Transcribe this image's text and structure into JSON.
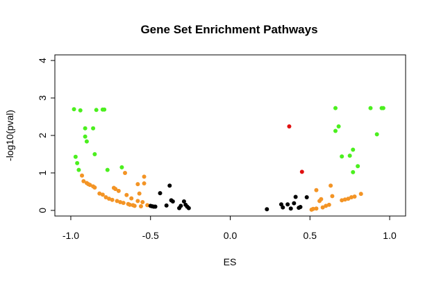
{
  "chart_data": {
    "type": "scatter",
    "title": "Gene Set Enrichment Pathways",
    "xlabel": "ES",
    "ylabel": "-log10(pval)",
    "xlim": [
      -1.1,
      1.1
    ],
    "ylim": [
      -0.15,
      4.15
    ],
    "xticks": [
      -1.0,
      -0.5,
      0.0,
      0.5,
      1.0
    ],
    "xtick_labels": [
      "-1.0",
      "-0.5",
      "0.0",
      "0.5",
      "1.0"
    ],
    "yticks": [
      0,
      1,
      2,
      3,
      4
    ],
    "ytick_labels": [
      "0",
      "1",
      "2",
      "3",
      "4"
    ],
    "grid": false,
    "colors": {
      "green": "#4bef1e",
      "orange": "#f39425",
      "black": "#000000",
      "red": "#e01010"
    },
    "series": [
      {
        "color_key": "green",
        "points": [
          [
            -0.98,
            2.7
          ],
          [
            -0.94,
            2.67
          ],
          [
            -0.91,
            2.19
          ],
          [
            -0.91,
            1.97
          ],
          [
            -0.9,
            1.84
          ],
          [
            -0.86,
            2.19
          ],
          [
            -0.84,
            2.68
          ],
          [
            -0.8,
            2.69
          ],
          [
            -0.79,
            2.69
          ],
          [
            -0.97,
            1.43
          ],
          [
            -0.96,
            1.26
          ],
          [
            -0.95,
            1.08
          ],
          [
            -0.85,
            1.5
          ],
          [
            -0.77,
            1.08
          ],
          [
            -0.68,
            1.15
          ],
          [
            0.66,
            2.73
          ],
          [
            0.68,
            2.24
          ],
          [
            0.66,
            2.12
          ],
          [
            0.7,
            1.44
          ],
          [
            0.75,
            1.46
          ],
          [
            0.77,
            1.62
          ],
          [
            0.8,
            1.18
          ],
          [
            0.77,
            1.02
          ],
          [
            0.88,
            2.73
          ],
          [
            0.95,
            2.73
          ],
          [
            0.96,
            2.73
          ],
          [
            0.92,
            2.03
          ]
        ]
      },
      {
        "color_key": "orange",
        "points": [
          [
            -0.93,
            0.93
          ],
          [
            -0.92,
            0.78
          ],
          [
            -0.9,
            0.73
          ],
          [
            -0.89,
            0.7
          ],
          [
            -0.88,
            0.68
          ],
          [
            -0.86,
            0.64
          ],
          [
            -0.85,
            0.61
          ],
          [
            -0.82,
            0.45
          ],
          [
            -0.8,
            0.42
          ],
          [
            -0.78,
            0.35
          ],
          [
            -0.76,
            0.31
          ],
          [
            -0.74,
            0.28
          ],
          [
            -0.73,
            0.6
          ],
          [
            -0.72,
            0.57
          ],
          [
            -0.71,
            0.25
          ],
          [
            -0.7,
            0.52
          ],
          [
            -0.69,
            0.22
          ],
          [
            -0.67,
            0.2
          ],
          [
            -0.66,
            1.0
          ],
          [
            -0.65,
            0.41
          ],
          [
            -0.64,
            0.17
          ],
          [
            -0.63,
            0.15
          ],
          [
            -0.62,
            0.32
          ],
          [
            -0.61,
            0.14
          ],
          [
            -0.6,
            0.12
          ],
          [
            -0.58,
            0.7
          ],
          [
            -0.58,
            0.25
          ],
          [
            -0.57,
            0.45
          ],
          [
            -0.56,
            0.11
          ],
          [
            -0.55,
            0.22
          ],
          [
            -0.54,
            0.9
          ],
          [
            -0.54,
            0.72
          ],
          [
            -0.52,
            0.14
          ],
          [
            0.51,
            0.02
          ],
          [
            0.52,
            0.04
          ],
          [
            0.54,
            0.05
          ],
          [
            0.54,
            0.54
          ],
          [
            0.56,
            0.25
          ],
          [
            0.57,
            0.3
          ],
          [
            0.58,
            0.08
          ],
          [
            0.6,
            0.12
          ],
          [
            0.62,
            0.15
          ],
          [
            0.63,
            0.66
          ],
          [
            0.64,
            0.38
          ],
          [
            0.7,
            0.27
          ],
          [
            0.72,
            0.29
          ],
          [
            0.74,
            0.31
          ],
          [
            0.76,
            0.35
          ],
          [
            0.78,
            0.37
          ],
          [
            0.82,
            0.44
          ]
        ]
      },
      {
        "color_key": "black",
        "points": [
          [
            -0.5,
            0.12
          ],
          [
            -0.49,
            0.11
          ],
          [
            -0.48,
            0.1
          ],
          [
            -0.47,
            0.1
          ],
          [
            -0.44,
            0.46
          ],
          [
            -0.4,
            0.13
          ],
          [
            -0.38,
            0.66
          ],
          [
            -0.37,
            0.27
          ],
          [
            -0.36,
            0.24
          ],
          [
            -0.32,
            0.06
          ],
          [
            -0.31,
            0.12
          ],
          [
            -0.29,
            0.24
          ],
          [
            -0.28,
            0.15
          ],
          [
            -0.27,
            0.1
          ],
          [
            -0.26,
            0.06
          ],
          [
            0.23,
            0.03
          ],
          [
            0.32,
            0.16
          ],
          [
            0.33,
            0.08
          ],
          [
            0.36,
            0.16
          ],
          [
            0.38,
            0.05
          ],
          [
            0.4,
            0.19
          ],
          [
            0.41,
            0.36
          ],
          [
            0.43,
            0.07
          ],
          [
            0.44,
            0.09
          ],
          [
            0.48,
            0.35
          ]
        ]
      },
      {
        "color_key": "red",
        "points": [
          [
            0.37,
            2.24
          ],
          [
            0.45,
            1.03
          ]
        ]
      }
    ]
  }
}
